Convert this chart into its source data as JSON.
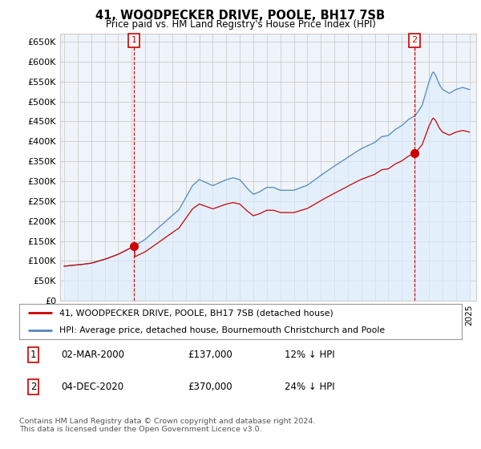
{
  "title": "41, WOODPECKER DRIVE, POOLE, BH17 7SB",
  "subtitle": "Price paid vs. HM Land Registry's House Price Index (HPI)",
  "ylim": [
    0,
    670000
  ],
  "yticks": [
    0,
    50000,
    100000,
    150000,
    200000,
    250000,
    300000,
    350000,
    400000,
    450000,
    500000,
    550000,
    600000,
    650000
  ],
  "ytick_labels": [
    "£0",
    "£50K",
    "£100K",
    "£150K",
    "£200K",
    "£250K",
    "£300K",
    "£350K",
    "£400K",
    "£450K",
    "£500K",
    "£550K",
    "£600K",
    "£650K"
  ],
  "xlim_start": 1994.7,
  "xlim_end": 2025.5,
  "hpi_color": "#5588bb",
  "hpi_fill_color": "#ddeeff",
  "sale_color": "#cc0000",
  "grid_color": "#cccccc",
  "bg_color": "#ffffff",
  "chart_bg": "#eef4fa",
  "sale1_x": 2000.17,
  "sale1_y": 137000,
  "sale2_x": 2020.92,
  "sale2_y": 370000,
  "legend_line1": "41, WOODPECKER DRIVE, POOLE, BH17 7SB (detached house)",
  "legend_line2": "HPI: Average price, detached house, Bournemouth Christchurch and Poole",
  "annot1_date": "02-MAR-2000",
  "annot1_price": "£137,000",
  "annot1_hpi": "12% ↓ HPI",
  "annot2_date": "04-DEC-2020",
  "annot2_price": "£370,000",
  "annot2_hpi": "24% ↓ HPI",
  "footnote": "Contains HM Land Registry data © Crown copyright and database right 2024.\nThis data is licensed under the Open Government Licence v3.0."
}
